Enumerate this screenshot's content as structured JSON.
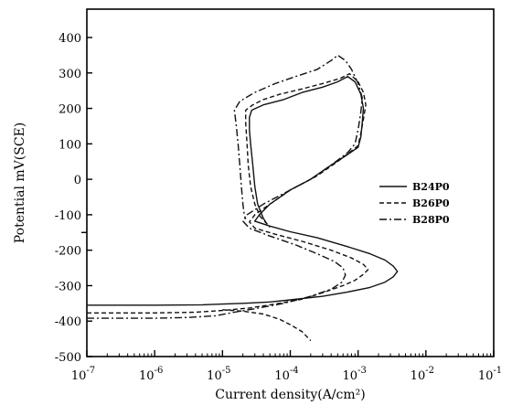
{
  "chart_data": {
    "type": "line",
    "xscale": "log",
    "xlabel": "Current density(A/cm²)",
    "ylabel": "Potential mV(SCE)",
    "xlim": [
      1e-07,
      0.1
    ],
    "ylim": [
      -500,
      480
    ],
    "x_ticks": [
      {
        "value": 1e-07,
        "base": "10",
        "exp": "-7"
      },
      {
        "value": 1e-06,
        "base": "10",
        "exp": "-6"
      },
      {
        "value": 1e-05,
        "base": "10",
        "exp": "-5"
      },
      {
        "value": 0.0001,
        "base": "10",
        "exp": "-4"
      },
      {
        "value": 0.001,
        "base": "10",
        "exp": "-3"
      },
      {
        "value": 0.01,
        "base": "10",
        "exp": "-2"
      },
      {
        "value": 0.1,
        "base": "10",
        "exp": "-1"
      }
    ],
    "y_ticks": [
      {
        "value": 400,
        "label": "400"
      },
      {
        "value": 300,
        "label": "300"
      },
      {
        "value": 200,
        "label": "200"
      },
      {
        "value": 100,
        "label": "100"
      },
      {
        "value": 0,
        "label": "0"
      },
      {
        "value": -100,
        "label": "-100"
      },
      {
        "value": -200,
        "label": "-200"
      },
      {
        "value": -300,
        "label": "-300"
      },
      {
        "value": -400,
        "label": "-400"
      },
      {
        "value": -500,
        "label": "-500"
      }
    ],
    "legend_position": "right",
    "grid": false,
    "series": [
      {
        "name": "B24P0",
        "dash": "solid",
        "points": [
          [
            1e-07,
            -355
          ],
          [
            1e-06,
            -355
          ],
          [
            5e-06,
            -354
          ],
          [
            1e-05,
            -352
          ],
          [
            2e-05,
            -350
          ],
          [
            5e-05,
            -346
          ],
          [
            0.0001,
            -340
          ],
          [
            0.0003,
            -330
          ],
          [
            0.0007,
            -318
          ],
          [
            0.0015,
            -305
          ],
          [
            0.0025,
            -290
          ],
          [
            0.0033,
            -275
          ],
          [
            0.0038,
            -260
          ],
          [
            0.0033,
            -245
          ],
          [
            0.0025,
            -228
          ],
          [
            0.0015,
            -210
          ],
          [
            0.0007,
            -190
          ],
          [
            0.00025,
            -165
          ],
          [
            0.0001,
            -148
          ],
          [
            5e-05,
            -132
          ],
          [
            3e-05,
            -118
          ],
          [
            3.5e-05,
            -100
          ],
          [
            5e-05,
            -70
          ],
          [
            0.0001,
            -30
          ],
          [
            0.0002,
            0
          ],
          [
            0.0004,
            40
          ],
          [
            0.0007,
            70
          ],
          [
            0.001,
            90
          ],
          [
            0.0011,
            120
          ],
          [
            0.00115,
            160
          ],
          [
            0.0012,
            200
          ],
          [
            0.0011,
            240
          ],
          [
            0.0009,
            275
          ],
          [
            0.0007,
            290
          ],
          [
            0.0005,
            275
          ],
          [
            0.0003,
            260
          ],
          [
            0.00015,
            245
          ],
          [
            8e-05,
            225
          ],
          [
            4e-05,
            210
          ],
          [
            2.7e-05,
            195
          ],
          [
            2.5e-05,
            175
          ],
          [
            2.5e-05,
            140
          ],
          [
            2.6e-05,
            100
          ],
          [
            2.8e-05,
            40
          ],
          [
            3e-05,
            -20
          ],
          [
            3.3e-05,
            -70
          ],
          [
            4e-05,
            -110
          ],
          [
            4.5e-05,
            -125
          ]
        ]
      },
      {
        "name": "B26P0",
        "dash": "dashed",
        "points": [
          [
            1e-07,
            -377
          ],
          [
            1e-06,
            -377
          ],
          [
            4e-06,
            -375
          ],
          [
            1e-05,
            -370
          ],
          [
            2.5e-05,
            -363
          ],
          [
            6e-05,
            -352
          ],
          [
            0.00015,
            -338
          ],
          [
            0.0003,
            -320
          ],
          [
            0.0006,
            -300
          ],
          [
            0.0009,
            -285
          ],
          [
            0.0012,
            -268
          ],
          [
            0.0014,
            -255
          ],
          [
            0.0012,
            -240
          ],
          [
            0.0008,
            -222
          ],
          [
            0.0004,
            -200
          ],
          [
            0.00015,
            -175
          ],
          [
            6e-05,
            -155
          ],
          [
            3e-05,
            -138
          ],
          [
            2.5e-05,
            -120
          ],
          [
            3e-05,
            -100
          ],
          [
            5e-05,
            -70
          ],
          [
            0.0001,
            -30
          ],
          [
            0.00025,
            10
          ],
          [
            0.0005,
            50
          ],
          [
            0.0008,
            80
          ],
          [
            0.001,
            95
          ],
          [
            0.0011,
            130
          ],
          [
            0.0012,
            170
          ],
          [
            0.0013,
            210
          ],
          [
            0.0012,
            245
          ],
          [
            0.001,
            275
          ],
          [
            0.00075,
            298
          ],
          [
            0.00055,
            285
          ],
          [
            0.0003,
            270
          ],
          [
            0.00015,
            255
          ],
          [
            7e-05,
            240
          ],
          [
            4e-05,
            225
          ],
          [
            2.8e-05,
            210
          ],
          [
            2.2e-05,
            195
          ],
          [
            2.2e-05,
            160
          ],
          [
            2.3e-05,
            100
          ],
          [
            2.4e-05,
            40
          ],
          [
            2.6e-05,
            -20
          ],
          [
            3e-05,
            -70
          ],
          [
            3.6e-05,
            -105
          ],
          [
            4.5e-05,
            -125
          ],
          [
            5e-05,
            -135
          ]
        ]
      },
      {
        "name": "B28P0",
        "dash": "dashdot",
        "points": [
          [
            1e-07,
            -392
          ],
          [
            1e-06,
            -392
          ],
          [
            3e-06,
            -390
          ],
          [
            8e-06,
            -385
          ],
          [
            1.5e-05,
            -375
          ],
          [
            3e-05,
            -365
          ],
          [
            8e-05,
            -350
          ],
          [
            0.0002,
            -330
          ],
          [
            0.0004,
            -310
          ],
          [
            0.00058,
            -290
          ],
          [
            0.00065,
            -270
          ],
          [
            0.0006,
            -250
          ],
          [
            0.00045,
            -232
          ],
          [
            0.00025,
            -210
          ],
          [
            0.00012,
            -185
          ],
          [
            5e-05,
            -160
          ],
          [
            2.5e-05,
            -138
          ],
          [
            2e-05,
            -118
          ],
          [
            2.3e-05,
            -100
          ],
          [
            4e-05,
            -70
          ],
          [
            8e-05,
            -40
          ],
          [
            0.0002,
            0
          ],
          [
            0.0004,
            40
          ],
          [
            0.0007,
            75
          ],
          [
            0.0009,
            100
          ],
          [
            0.001,
            140
          ],
          [
            0.0011,
            190
          ],
          [
            0.00115,
            230
          ],
          [
            0.001,
            270
          ],
          [
            0.0008,
            310
          ],
          [
            0.00065,
            335
          ],
          [
            0.0005,
            350
          ],
          [
            0.0004,
            335
          ],
          [
            0.00025,
            310
          ],
          [
            0.00012,
            290
          ],
          [
            6e-05,
            270
          ],
          [
            3e-05,
            245
          ],
          [
            1.8e-05,
            220
          ],
          [
            1.5e-05,
            195
          ],
          [
            1.6e-05,
            150
          ],
          [
            1.7e-05,
            100
          ],
          [
            1.8e-05,
            40
          ],
          [
            1.9e-05,
            -20
          ],
          [
            2e-05,
            -70
          ],
          [
            2.1e-05,
            -100
          ],
          [
            2.2e-05,
            -112
          ]
        ]
      },
      {
        "name": "",
        "dash": "dashed",
        "points": [
          [
            1e-05,
            -368
          ],
          [
            2e-05,
            -372
          ],
          [
            4e-05,
            -380
          ],
          [
            7e-05,
            -395
          ],
          [
            0.0001,
            -410
          ],
          [
            0.00015,
            -430
          ],
          [
            0.0002,
            -455
          ]
        ]
      }
    ]
  }
}
